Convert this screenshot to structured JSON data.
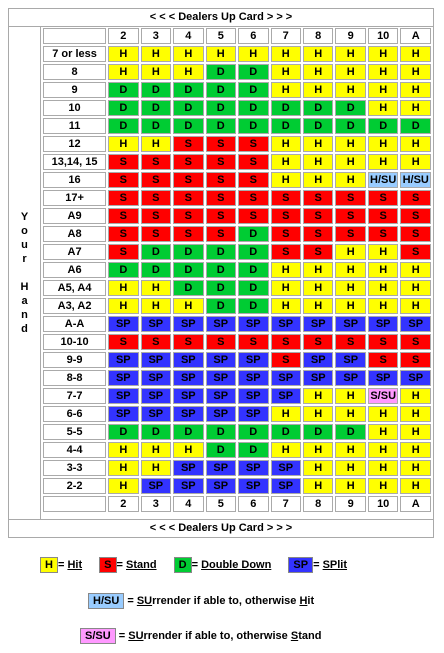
{
  "header": {
    "label": "<  <  <   Dealers Up Card   >  >  >"
  },
  "footer": {
    "label": "<  <  <   Dealers Up Card   >  >  >"
  },
  "side_label": [
    "Y",
    "o",
    "u",
    "r",
    "",
    "H",
    "a",
    "n",
    "d"
  ],
  "dealer_cards": [
    "2",
    "3",
    "4",
    "5",
    "6",
    "7",
    "8",
    "9",
    "10",
    "A"
  ],
  "rows": [
    {
      "hand": "7 or less",
      "cells": [
        "H",
        "H",
        "H",
        "H",
        "H",
        "H",
        "H",
        "H",
        "H",
        "H"
      ]
    },
    {
      "hand": "8",
      "cells": [
        "H",
        "H",
        "H",
        "D",
        "D",
        "H",
        "H",
        "H",
        "H",
        "H"
      ]
    },
    {
      "hand": "9",
      "cells": [
        "D",
        "D",
        "D",
        "D",
        "D",
        "H",
        "H",
        "H",
        "H",
        "H"
      ]
    },
    {
      "hand": "10",
      "cells": [
        "D",
        "D",
        "D",
        "D",
        "D",
        "D",
        "D",
        "D",
        "H",
        "H"
      ]
    },
    {
      "hand": "11",
      "cells": [
        "D",
        "D",
        "D",
        "D",
        "D",
        "D",
        "D",
        "D",
        "D",
        "D"
      ]
    },
    {
      "hand": "12",
      "cells": [
        "H",
        "H",
        "S",
        "S",
        "S",
        "H",
        "H",
        "H",
        "H",
        "H"
      ]
    },
    {
      "hand": "13,14, 15",
      "cells": [
        "S",
        "S",
        "S",
        "S",
        "S",
        "H",
        "H",
        "H",
        "H",
        "H"
      ]
    },
    {
      "hand": "16",
      "cells": [
        "S",
        "S",
        "S",
        "S",
        "S",
        "H",
        "H",
        "H",
        "H/SU",
        "H/SU"
      ]
    },
    {
      "hand": "17+",
      "cells": [
        "S",
        "S",
        "S",
        "S",
        "S",
        "S",
        "S",
        "S",
        "S",
        "S"
      ]
    },
    {
      "hand": "A9",
      "cells": [
        "S",
        "S",
        "S",
        "S",
        "S",
        "S",
        "S",
        "S",
        "S",
        "S"
      ]
    },
    {
      "hand": "A8",
      "cells": [
        "S",
        "S",
        "S",
        "S",
        "D",
        "S",
        "S",
        "S",
        "S",
        "S"
      ]
    },
    {
      "hand": "A7",
      "cells": [
        "S",
        "D",
        "D",
        "D",
        "D",
        "S",
        "S",
        "H",
        "H",
        "S"
      ]
    },
    {
      "hand": "A6",
      "cells": [
        "D",
        "D",
        "D",
        "D",
        "D",
        "H",
        "H",
        "H",
        "H",
        "H"
      ]
    },
    {
      "hand": "A5, A4",
      "cells": [
        "H",
        "H",
        "D",
        "D",
        "D",
        "H",
        "H",
        "H",
        "H",
        "H"
      ]
    },
    {
      "hand": "A3, A2",
      "cells": [
        "H",
        "H",
        "H",
        "D",
        "D",
        "H",
        "H",
        "H",
        "H",
        "H"
      ]
    },
    {
      "hand": "A-A",
      "cells": [
        "SP",
        "SP",
        "SP",
        "SP",
        "SP",
        "SP",
        "SP",
        "SP",
        "SP",
        "SP"
      ]
    },
    {
      "hand": "10-10",
      "cells": [
        "S",
        "S",
        "S",
        "S",
        "S",
        "S",
        "S",
        "S",
        "S",
        "S"
      ]
    },
    {
      "hand": "9-9",
      "cells": [
        "SP",
        "SP",
        "SP",
        "SP",
        "SP",
        "S",
        "SP",
        "SP",
        "S",
        "S"
      ]
    },
    {
      "hand": "8-8",
      "cells": [
        "SP",
        "SP",
        "SP",
        "SP",
        "SP",
        "SP",
        "SP",
        "SP",
        "SP",
        "SP"
      ]
    },
    {
      "hand": "7-7",
      "cells": [
        "SP",
        "SP",
        "SP",
        "SP",
        "SP",
        "SP",
        "H",
        "H",
        "S/SU",
        "H"
      ]
    },
    {
      "hand": "6-6",
      "cells": [
        "SP",
        "SP",
        "SP",
        "SP",
        "SP",
        "H",
        "H",
        "H",
        "H",
        "H"
      ]
    },
    {
      "hand": "5-5",
      "cells": [
        "D",
        "D",
        "D",
        "D",
        "D",
        "D",
        "D",
        "D",
        "H",
        "H"
      ]
    },
    {
      "hand": "4-4",
      "cells": [
        "H",
        "H",
        "H",
        "D",
        "D",
        "H",
        "H",
        "H",
        "H",
        "H"
      ]
    },
    {
      "hand": "3-3",
      "cells": [
        "H",
        "H",
        "SP",
        "SP",
        "SP",
        "SP",
        "H",
        "H",
        "H",
        "H"
      ]
    },
    {
      "hand": "2-2",
      "cells": [
        "H",
        "SP",
        "SP",
        "SP",
        "SP",
        "SP",
        "H",
        "H",
        "H",
        "H"
      ]
    }
  ],
  "legend": {
    "hit_code": "H",
    "hit_text": "Hit",
    "stand_code": "S",
    "stand_text": "Stand",
    "double_code": "D",
    "double_text": "Double Down",
    "split_code": "SP",
    "split_text": "SPlit",
    "hsu_code": "H/SU",
    "hsu_text_a": "SU",
    "hsu_text_b": "rrender if able to, otherwise ",
    "hsu_text_c": "H",
    "hsu_text_d": "it",
    "ssu_code": "S/SU",
    "ssu_text_a": "SU",
    "ssu_text_b": "rrender if able to, otherwise ",
    "ssu_text_c": "S",
    "ssu_text_d": "tand"
  },
  "colors": {
    "H": "#ffff00",
    "S": "#ff0000",
    "D": "#00cc33",
    "SP": "#3333ff",
    "H/SU": "#99ccff",
    "S/SU": "#ff99ff"
  }
}
